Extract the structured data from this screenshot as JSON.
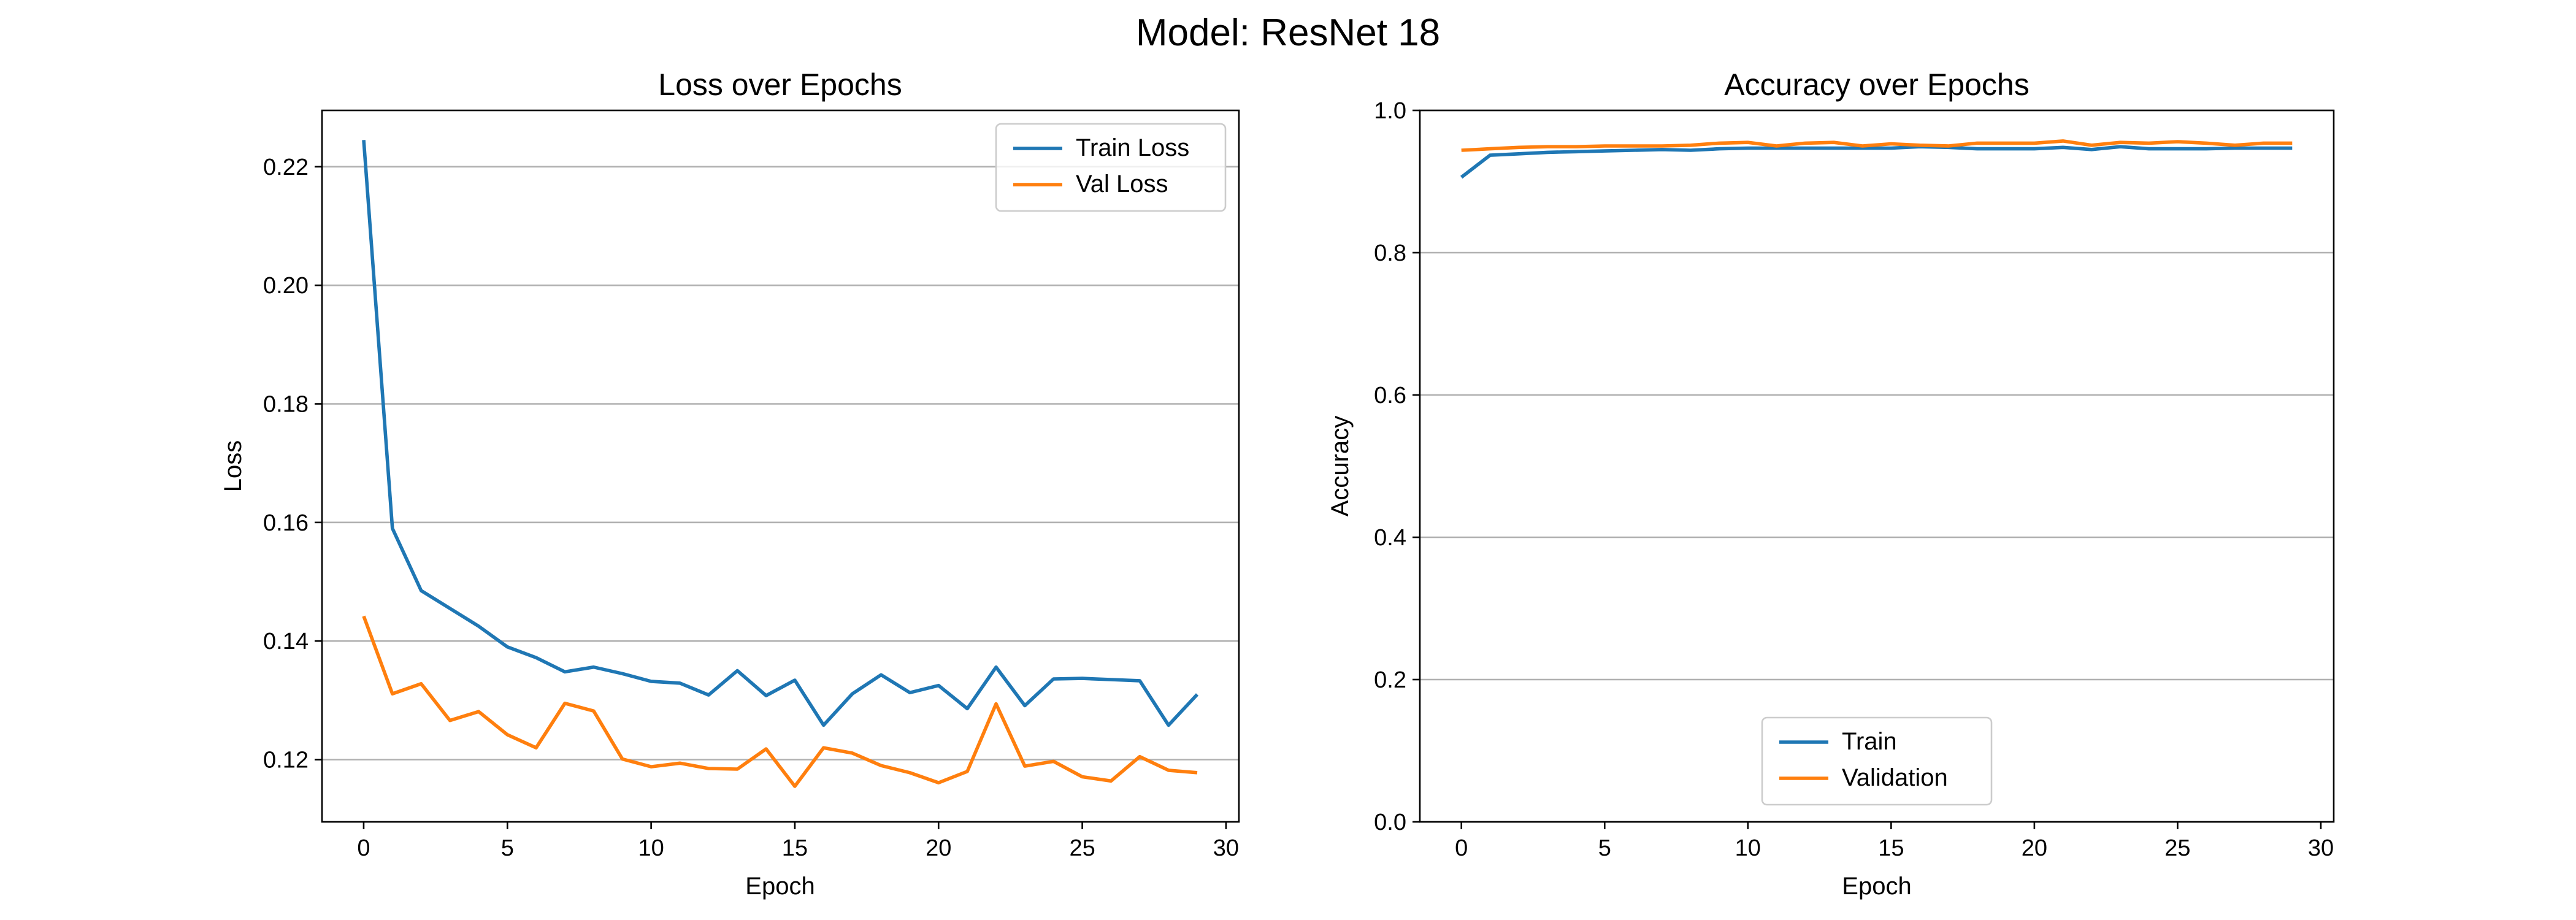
{
  "suptitle": "Model: ResNet 18",
  "colors": {
    "train": "#1f77b4",
    "val": "#ff7f0e",
    "grid": "#b0b0b0"
  },
  "chart_data": [
    {
      "type": "line",
      "title": "Loss over Epochs",
      "xlabel": "Epoch",
      "ylabel": "Loss",
      "xlim": [
        -1.45,
        30.45
      ],
      "ylim": [
        0.1095,
        0.2295
      ],
      "xticks": [
        0,
        5,
        10,
        15,
        20,
        25,
        30
      ],
      "yticks": [
        0.12,
        0.14,
        0.16,
        0.18,
        0.2,
        0.22
      ],
      "ytick_labels": [
        "0.12",
        "0.14",
        "0.16",
        "0.18",
        "0.20",
        "0.22"
      ],
      "grid": "y",
      "legend": "top-right",
      "x": [
        0,
        1,
        2,
        3,
        4,
        5,
        6,
        7,
        8,
        9,
        10,
        11,
        12,
        13,
        14,
        15,
        16,
        17,
        18,
        19,
        20,
        21,
        22,
        23,
        24,
        25,
        26,
        27,
        28,
        29
      ],
      "series": [
        {
          "name": "Train Loss",
          "color": "#1f77b4",
          "values": [
            0.2245,
            0.159,
            0.1485,
            0.1455,
            0.1425,
            0.139,
            0.1372,
            0.1348,
            0.1356,
            0.1345,
            0.1332,
            0.1329,
            0.1309,
            0.135,
            0.1308,
            0.1334,
            0.1258,
            0.1311,
            0.1343,
            0.1313,
            0.1325,
            0.1286,
            0.1356,
            0.1291,
            0.1336,
            0.1337,
            0.1335,
            0.1333,
            0.1258,
            0.131
          ]
        },
        {
          "name": "Val Loss",
          "color": "#ff7f0e",
          "values": [
            0.1442,
            0.1311,
            0.1328,
            0.1266,
            0.1281,
            0.1242,
            0.122,
            0.1295,
            0.1282,
            0.1201,
            0.1188,
            0.1194,
            0.1185,
            0.1184,
            0.1218,
            0.1155,
            0.122,
            0.1211,
            0.119,
            0.1178,
            0.1161,
            0.118,
            0.1294,
            0.1189,
            0.1197,
            0.1171,
            0.1164,
            0.1205,
            0.1182,
            0.1178
          ]
        }
      ]
    },
    {
      "type": "line",
      "title": "Accuracy over Epochs",
      "xlabel": "Epoch",
      "ylabel": "Accuracy",
      "xlim": [
        -1.45,
        30.45
      ],
      "ylim": [
        0.0,
        1.0
      ],
      "xticks": [
        0,
        5,
        10,
        15,
        20,
        25,
        30
      ],
      "yticks": [
        0.0,
        0.2,
        0.4,
        0.6,
        0.8,
        1.0
      ],
      "ytick_labels": [
        "0.0",
        "0.2",
        "0.4",
        "0.6",
        "0.8",
        "1.0"
      ],
      "grid": "y",
      "legend": "bottom-center",
      "x": [
        0,
        1,
        2,
        3,
        4,
        5,
        6,
        7,
        8,
        9,
        10,
        11,
        12,
        13,
        14,
        15,
        16,
        17,
        18,
        19,
        20,
        21,
        22,
        23,
        24,
        25,
        26,
        27,
        28,
        29
      ],
      "series": [
        {
          "name": "Train",
          "color": "#1f77b4",
          "values": [
            0.906,
            0.937,
            0.939,
            0.941,
            0.942,
            0.943,
            0.944,
            0.945,
            0.944,
            0.946,
            0.947,
            0.947,
            0.947,
            0.947,
            0.947,
            0.947,
            0.949,
            0.948,
            0.946,
            0.946,
            0.946,
            0.948,
            0.945,
            0.949,
            0.946,
            0.946,
            0.946,
            0.947,
            0.947,
            0.947
          ]
        },
        {
          "name": "Validation",
          "color": "#ff7f0e",
          "values": [
            0.944,
            0.946,
            0.948,
            0.949,
            0.949,
            0.95,
            0.95,
            0.95,
            0.951,
            0.954,
            0.955,
            0.95,
            0.954,
            0.955,
            0.95,
            0.953,
            0.951,
            0.95,
            0.954,
            0.954,
            0.954,
            0.957,
            0.951,
            0.955,
            0.954,
            0.956,
            0.954,
            0.951,
            0.954,
            0.954
          ]
        }
      ]
    }
  ]
}
